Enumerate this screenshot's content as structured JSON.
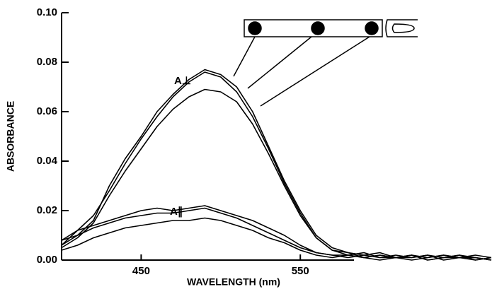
{
  "chart_data": {
    "type": "line",
    "ylabel": "ABSORBANCE",
    "xlabel": "WAVELENGTH (nm)",
    "annotations": [
      "A⊥",
      "A∥"
    ],
    "x": [
      400,
      410,
      420,
      430,
      440,
      450,
      460,
      470,
      480,
      490,
      500,
      510,
      520,
      530,
      540,
      550,
      560,
      570,
      580,
      590,
      600,
      610,
      620,
      630,
      640,
      650,
      660,
      670
    ],
    "series": [
      {
        "color": "#000",
        "values": [
          0.008,
          0.01,
          0.016,
          0.03,
          0.041,
          0.05,
          0.06,
          0.067,
          0.073,
          0.077,
          0.075,
          0.07,
          0.06,
          0.046,
          0.032,
          0.02,
          0.01,
          0.005,
          0.003,
          0.002,
          0.003,
          0.001,
          0.002,
          0.001,
          0.002,
          0.001,
          0.002,
          0.001
        ]
      },
      {
        "color": "#000",
        "values": [
          0.006,
          0.012,
          0.018,
          0.028,
          0.039,
          0.049,
          0.058,
          0.066,
          0.072,
          0.076,
          0.074,
          0.068,
          0.058,
          0.045,
          0.031,
          0.019,
          0.009,
          0.004,
          0.002,
          0.003,
          0.001,
          0.002,
          0.001,
          0.002,
          0.001,
          0.002,
          0.0,
          0.001
        ]
      },
      {
        "color": "#000",
        "values": [
          0.005,
          0.009,
          0.015,
          0.026,
          0.036,
          0.045,
          0.054,
          0.061,
          0.066,
          0.069,
          0.068,
          0.064,
          0.055,
          0.043,
          0.03,
          0.018,
          0.009,
          0.004,
          0.003,
          0.001,
          0.002,
          0.001,
          0.002,
          0.0,
          0.001,
          0.002,
          0.001,
          0.0
        ]
      },
      {
        "color": "#000",
        "values": [
          0.008,
          0.012,
          0.014,
          0.016,
          0.018,
          0.02,
          0.021,
          0.02,
          0.021,
          0.022,
          0.02,
          0.018,
          0.016,
          0.013,
          0.01,
          0.006,
          0.003,
          0.002,
          0.002,
          0.001,
          0.002,
          0.001,
          0.0,
          0.001,
          0.002,
          0.001,
          0.001,
          0.0
        ]
      },
      {
        "color": "#000",
        "values": [
          0.006,
          0.01,
          0.013,
          0.015,
          0.017,
          0.018,
          0.019,
          0.019,
          0.02,
          0.021,
          0.019,
          0.017,
          0.014,
          0.011,
          0.008,
          0.005,
          0.003,
          0.002,
          0.001,
          0.002,
          0.001,
          0.001,
          0.002,
          0.0,
          0.001,
          0.001,
          0.0,
          0.001
        ]
      },
      {
        "color": "#000",
        "values": [
          0.004,
          0.006,
          0.009,
          0.011,
          0.013,
          0.014,
          0.015,
          0.016,
          0.016,
          0.017,
          0.016,
          0.014,
          0.012,
          0.009,
          0.007,
          0.004,
          0.002,
          0.001,
          0.002,
          0.001,
          0.0,
          0.001,
          0.001,
          0.002,
          0.0,
          0.001,
          0.001,
          0.0
        ]
      }
    ],
    "xlim": [
      400,
      670
    ],
    "ylim": [
      0,
      0.1
    ],
    "xticks": [
      450,
      550
    ],
    "yticks": [
      {
        "value": 0,
        "label": "0.00"
      },
      {
        "value": 0.02,
        "label": "0.02"
      },
      {
        "value": 0.04,
        "label": "0.04"
      },
      {
        "value": 0.06,
        "label": "0.06"
      },
      {
        "value": 0.08,
        "label": "0.08"
      },
      {
        "value": 0.1,
        "label": "0.10"
      }
    ]
  }
}
